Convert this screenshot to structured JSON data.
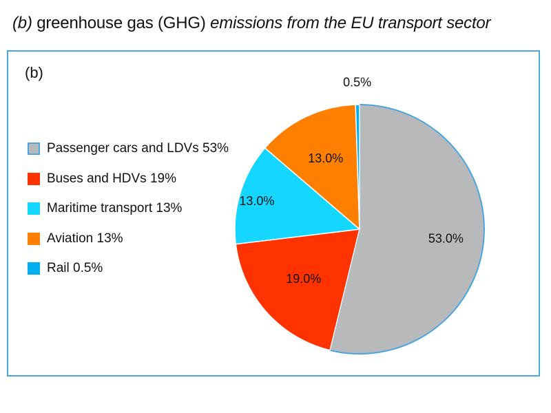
{
  "figure": {
    "title_prefix": "(b)",
    "title_middle": " greenhouse gas (GHG) ",
    "title_suffix": "emissions from the EU transport sector",
    "panel_label": "(b)"
  },
  "chart_data": {
    "type": "pie",
    "title": "(b) greenhouse gas (GHG) emissions from the EU transport sector",
    "legend_position": "left",
    "start_angle_deg": 0,
    "direction": "clockwise",
    "slices": [
      {
        "legend": "Passenger cars and LDVs 53%",
        "value": 53.0,
        "label": "53.0%",
        "color": "#b8b9bb",
        "border": "#4aa6de"
      },
      {
        "legend": "Buses and HDVs 19%",
        "value": 19.0,
        "label": "19.0%",
        "color": "#ff3300",
        "border": ""
      },
      {
        "legend": "Maritime transport 13%",
        "value": 13.0,
        "label": "13.0%",
        "color": "#14d6ff",
        "border": ""
      },
      {
        "legend": "Aviation 13%",
        "value": 13.0,
        "label": "13.0%",
        "color": "#ff8000",
        "border": ""
      },
      {
        "legend": "Rail 0.5%",
        "value": 0.5,
        "label": "0.5%",
        "color": "#00aeef",
        "border": ""
      }
    ]
  }
}
